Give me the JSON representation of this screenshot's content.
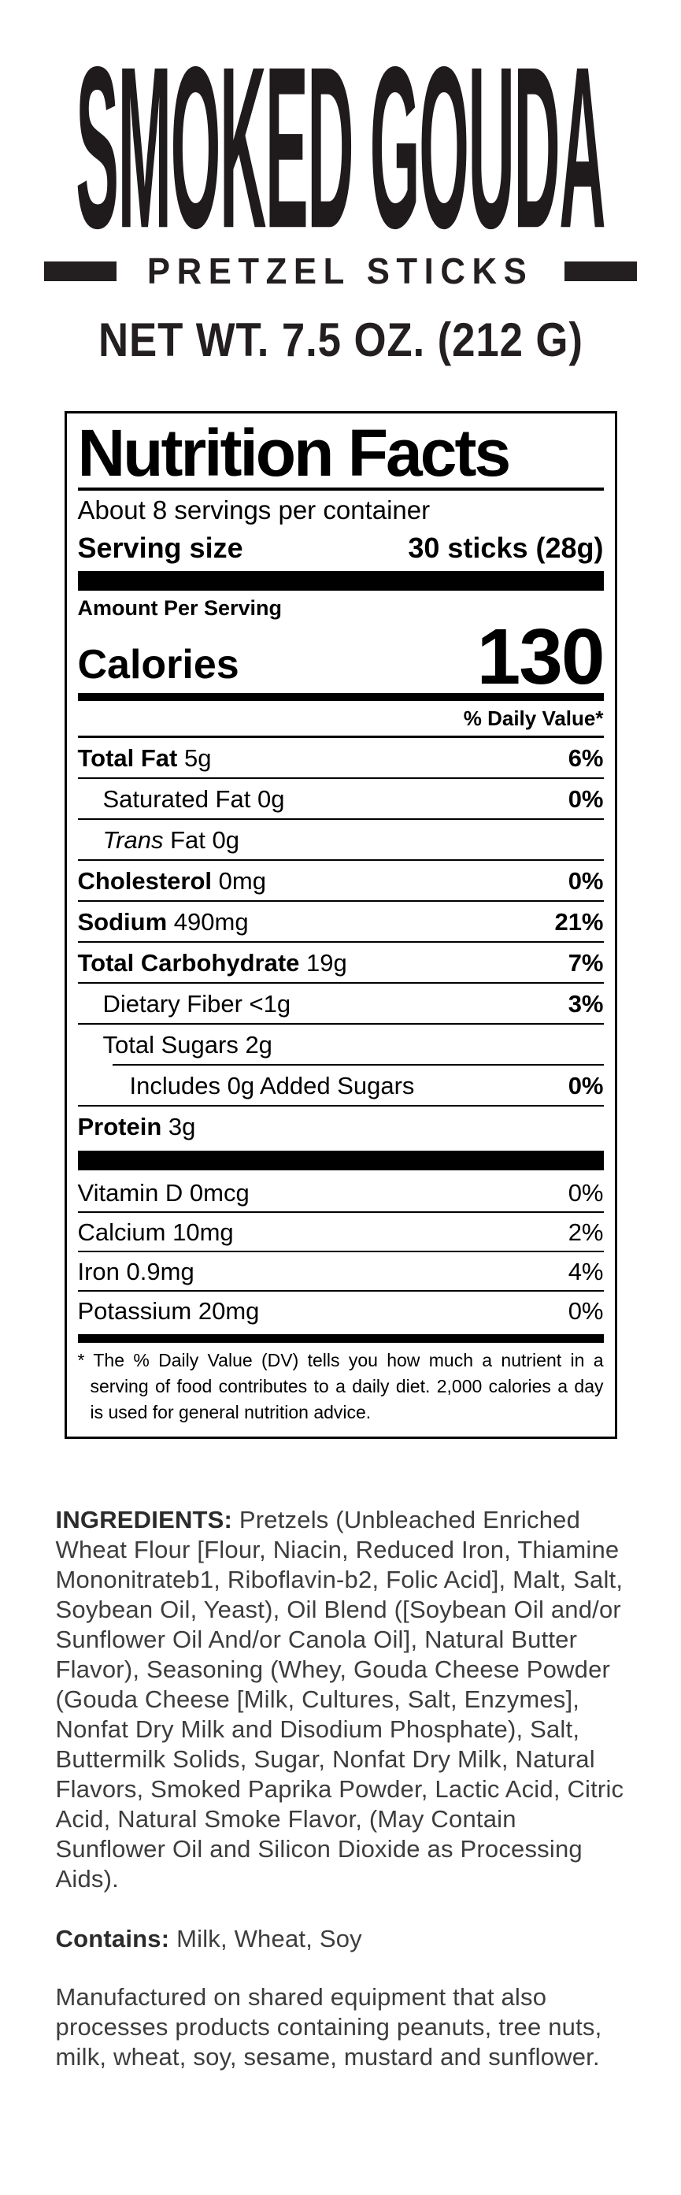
{
  "brand": {
    "title": "SMOKED GOUDA",
    "subtitle": "PRETZEL STICKS",
    "net_weight": "NET WT. 7.5 OZ. (212 G)"
  },
  "nutrition": {
    "title": "Nutrition Facts",
    "servings_per_container": "About 8 servings per container",
    "serving_size_label": "Serving size",
    "serving_size_value": "30 sticks (28g)",
    "amount_per_serving": "Amount Per Serving",
    "calories_label": "Calories",
    "calories_value": "130",
    "daily_value_header": "% Daily Value*",
    "rows": [
      {
        "label": "Total Fat",
        "amount": "5g",
        "dv": "6%",
        "bold": true,
        "dv_bold": true,
        "indent": 0
      },
      {
        "label": "Saturated Fat",
        "amount": "0g",
        "dv": "0%",
        "bold": false,
        "dv_bold": true,
        "indent": 1
      },
      {
        "label": "Trans",
        "amount": "Fat 0g",
        "dv": "",
        "bold": false,
        "italic": true,
        "indent": 1
      },
      {
        "label": "Cholesterol",
        "amount": "0mg",
        "dv": "0%",
        "bold": true,
        "dv_bold": true,
        "indent": 0
      },
      {
        "label": "Sodium",
        "amount": "490mg",
        "dv": "21%",
        "bold": true,
        "dv_bold": true,
        "indent": 0
      },
      {
        "label": "Total Carbohydrate",
        "amount": "19g",
        "dv": "7%",
        "bold": true,
        "dv_bold": true,
        "indent": 0
      },
      {
        "label": "Dietary Fiber",
        "amount": "<1g",
        "dv": "3%",
        "bold": false,
        "dv_bold": true,
        "indent": 1
      },
      {
        "label": "Total Sugars",
        "amount": "2g",
        "dv": "",
        "bold": false,
        "indent": 1,
        "rule_inset": true
      },
      {
        "label": "Includes 0g Added Sugars",
        "amount": "",
        "dv": "0%",
        "bold": false,
        "dv_bold": true,
        "indent": 2
      },
      {
        "label": "Protein",
        "amount": "3g",
        "dv": "",
        "bold": true,
        "indent": 0,
        "no_rule": true
      }
    ],
    "vitamins": [
      {
        "label": "Vitamin D",
        "amount": "0mcg",
        "dv": "0%",
        "bold": false,
        "dv_bold": false,
        "indent": 0
      },
      {
        "label": "Calcium",
        "amount": "10mg",
        "dv": "2%",
        "bold": false,
        "dv_bold": false,
        "indent": 0
      },
      {
        "label": "Iron",
        "amount": "0.9mg",
        "dv": "4%",
        "bold": false,
        "dv_bold": false,
        "indent": 0
      },
      {
        "label": "Potassium",
        "amount": "20mg",
        "dv": "0%",
        "bold": false,
        "dv_bold": false,
        "indent": 0,
        "no_rule": true
      }
    ],
    "footnote": "* The % Daily Value (DV) tells you how much a nutrient in a serving of food contributes to a daily diet. 2,000 calories a day is used for general nutrition advice."
  },
  "ingredients": {
    "label": "INGREDIENTS:",
    "text": "Pretzels (Unbleached Enriched Wheat Flour [Flour, Niacin, Reduced Iron, Thiamine Mononitrateb1, Riboflavin-b2, Folic Acid], Malt, Salt, Soybean Oil, Yeast), Oil Blend ([Soybean Oil and/or Sunflower Oil And/or Canola Oil], Natural Butter Flavor), Seasoning (Whey, Gouda Cheese Powder (Gouda Cheese [Milk, Cultures, Salt, Enzymes], Nonfat Dry Milk and Disodium Phosphate), Salt, Buttermilk Solids, Sugar, Nonfat Dry Milk, Natural Flavors, Smoked Paprika Powder, Lactic Acid, Citric Acid, Natural Smoke Flavor, (May Contain Sunflower Oil and Silicon Dioxide as Processing Aids)."
  },
  "contains": {
    "label": "Contains:",
    "text": "Milk, Wheat, Soy"
  },
  "allergen_statement": "Manufactured on shared equipment that also processes products containing peanuts, tree nuts, milk, wheat, soy, sesame, mustard and sunflower.",
  "colors": {
    "ink": "#231f20",
    "panel_ink": "#000000",
    "body_text": "#3d3d3d"
  }
}
